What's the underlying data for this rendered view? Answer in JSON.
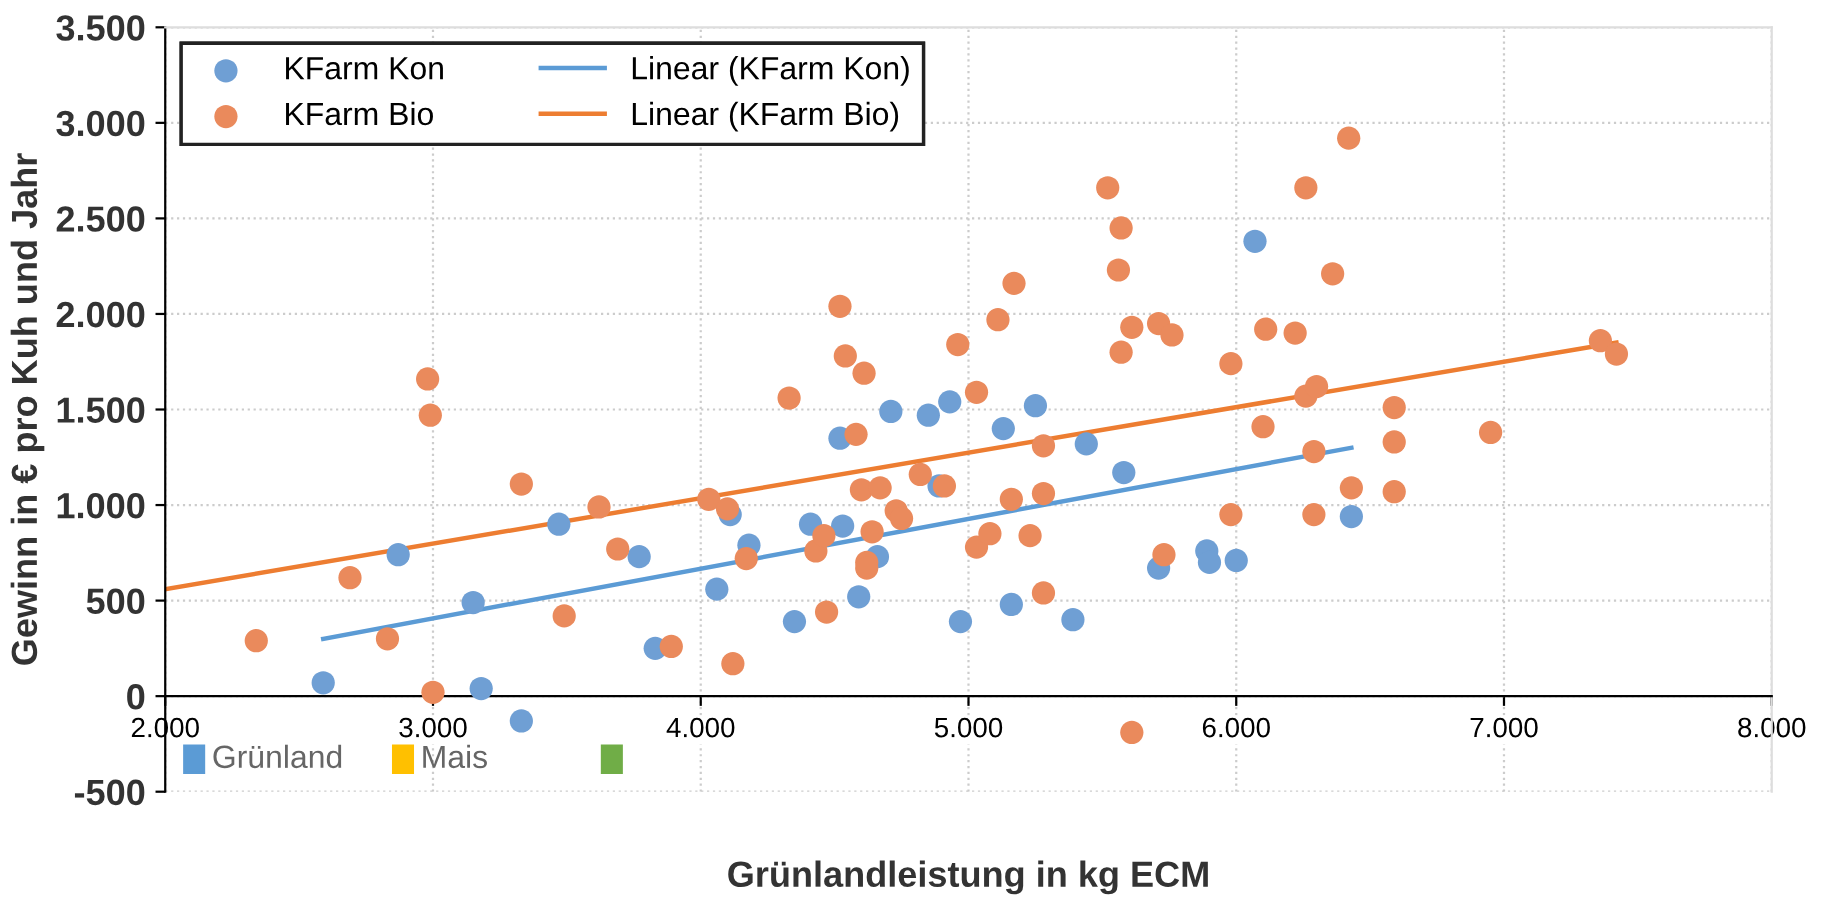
{
  "chart_data": {
    "type": "scatter",
    "xlabel": "Grünlandleistung in kg ECM",
    "ylabel": "Gewinn in € pro Kuh und Jahr",
    "xlim": [
      2000,
      8000
    ],
    "ylim": [
      -500,
      3500
    ],
    "xticks": [
      {
        "value": 2000,
        "label": "2.000"
      },
      {
        "value": 3000,
        "label": "3.000"
      },
      {
        "value": 4000,
        "label": "4.000"
      },
      {
        "value": 5000,
        "label": "5.000"
      },
      {
        "value": 6000,
        "label": "6.000"
      },
      {
        "value": 7000,
        "label": "7.000"
      },
      {
        "value": 8000,
        "label": "8.000"
      }
    ],
    "yticks": [
      {
        "value": -500,
        "label": "-500"
      },
      0,
      500,
      {
        "value": 1000,
        "label": "1.000"
      },
      {
        "value": 1500,
        "label": "1.500"
      },
      {
        "value": 2000,
        "label": "2.000"
      },
      {
        "value": 2500,
        "label": "2.500"
      },
      {
        "value": 3000,
        "label": "3.000"
      },
      {
        "value": 3500,
        "label": "3.500"
      }
    ],
    "grid": true,
    "legend": "left",
    "series": [
      {
        "name": "KFarm Kon",
        "color": "#6f9fd4",
        "marker": "circle",
        "x": [
          2590,
          2870,
          3150,
          3180,
          3330,
          3470,
          3770,
          3830,
          4060,
          4110,
          4180,
          4350,
          4410,
          4530,
          4520,
          4660,
          4590,
          4710,
          4850,
          4930,
          4970,
          4890,
          5130,
          5160,
          5250,
          5390,
          5440,
          5580,
          5710,
          5890,
          5900,
          6000,
          6070,
          6430
        ],
        "values": [
          70,
          740,
          490,
          40,
          -130,
          900,
          730,
          250,
          560,
          950,
          790,
          390,
          900,
          890,
          1350,
          730,
          520,
          1490,
          1470,
          1540,
          390,
          1100,
          1400,
          480,
          1520,
          400,
          1320,
          1170,
          670,
          760,
          700,
          710,
          2380,
          940
        ]
      },
      {
        "name": "KFarm Bio",
        "color": "#ea8a5c",
        "marker": "circle",
        "x": [
          2340,
          2690,
          2830,
          2980,
          2990,
          3000,
          3330,
          3490,
          3620,
          3690,
          3890,
          4030,
          4100,
          4120,
          4170,
          4330,
          4430,
          4460,
          4470,
          4520,
          4540,
          4610,
          4580,
          4600,
          4670,
          4640,
          4620,
          4620,
          4730,
          4750,
          4820,
          4910,
          4960,
          5030,
          5030,
          5080,
          5110,
          5160,
          5170,
          5230,
          5280,
          5280,
          5280,
          5520,
          5570,
          5560,
          5570,
          5610,
          5710,
          5760,
          5730,
          5610,
          5980,
          5980,
          6110,
          6100,
          6220,
          6260,
          6260,
          6300,
          6290,
          6290,
          6360,
          6420,
          6430,
          6590,
          6590,
          6590,
          6950,
          7360,
          7420
        ],
        "values": [
          290,
          620,
          300,
          1660,
          1470,
          20,
          1110,
          420,
          990,
          770,
          260,
          1030,
          980,
          170,
          720,
          1560,
          760,
          840,
          440,
          2040,
          1780,
          1690,
          1370,
          1080,
          1090,
          860,
          700,
          670,
          970,
          930,
          1160,
          1100,
          1840,
          1590,
          780,
          850,
          1970,
          1030,
          2160,
          840,
          1310,
          1060,
          540,
          2660,
          2450,
          2230,
          1800,
          1930,
          1950,
          1890,
          740,
          -190,
          1740,
          950,
          1920,
          1410,
          1900,
          2660,
          1570,
          1620,
          1280,
          950,
          2210,
          2920,
          1090,
          1510,
          1330,
          1070,
          1380,
          1860,
          1790
        ]
      },
      {
        "name": "Linear (KFarm Kon)",
        "type": "line",
        "color": "#5b9bd5",
        "x": [
          2590,
          6430
        ],
        "values": [
          300,
          1300
        ]
      },
      {
        "name": "Linear (KFarm Bio)",
        "type": "line",
        "color": "#ed7d31",
        "x": [
          2000,
          7420
        ],
        "values": [
          560,
          1850
        ]
      },
      {
        "name": "Grünland",
        "type": "bar",
        "color": "#5b9bd5"
      },
      {
        "name": "Mais",
        "type": "bar",
        "color": "#ffc000"
      },
      {
        "type": "bar",
        "color": "#70ad47"
      }
    ]
  }
}
